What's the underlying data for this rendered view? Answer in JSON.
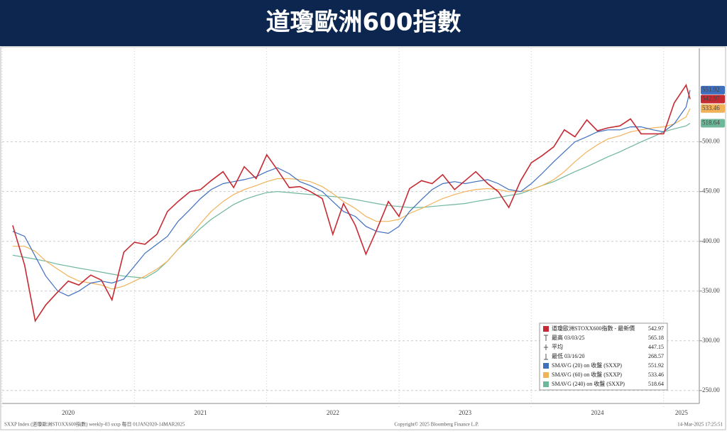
{
  "chart_data": {
    "type": "line",
    "title": "道瓊歐洲600指數",
    "x": [
      2020.08,
      2020.17,
      2020.25,
      2020.33,
      2020.42,
      2020.5,
      2020.58,
      2020.67,
      2020.75,
      2020.83,
      2020.92,
      2021.0,
      2021.08,
      2021.17,
      2021.25,
      2021.33,
      2021.42,
      2021.5,
      2021.58,
      2021.67,
      2021.75,
      2021.83,
      2021.92,
      2022.0,
      2022.08,
      2022.17,
      2022.25,
      2022.33,
      2022.42,
      2022.5,
      2022.58,
      2022.67,
      2022.75,
      2022.83,
      2022.92,
      2023.0,
      2023.08,
      2023.17,
      2023.25,
      2023.33,
      2023.42,
      2023.5,
      2023.58,
      2023.67,
      2023.75,
      2023.83,
      2023.92,
      2024.0,
      2024.08,
      2024.17,
      2024.25,
      2024.33,
      2024.42,
      2024.5,
      2024.58,
      2024.67,
      2024.75,
      2024.83,
      2024.92,
      2025.0,
      2025.08,
      2025.17,
      2025.2
    ],
    "xlim": [
      2020,
      2025.27
    ],
    "xticks": [
      {
        "value": 2020,
        "label": "2020"
      },
      {
        "value": 2021,
        "label": "2021"
      },
      {
        "value": 2022,
        "label": "2022"
      },
      {
        "value": 2023,
        "label": "2023"
      },
      {
        "value": 2024,
        "label": "2024"
      },
      {
        "value": 2025,
        "label": "2025"
      }
    ],
    "ylim": [
      237,
      594
    ],
    "yticks": [
      {
        "value": 250,
        "label": "250.00"
      },
      {
        "value": 300,
        "label": "300.00"
      },
      {
        "value": 350,
        "label": "350.00"
      },
      {
        "value": 400,
        "label": "400.00"
      },
      {
        "value": 450,
        "label": "450.00"
      },
      {
        "value": 500,
        "label": "500.00"
      }
    ],
    "grid": true,
    "series": [
      {
        "name": "道瓊歐洲STOXX600指數 - 最新價",
        "color": "#c62a32",
        "values": [
          416,
          376,
          320,
          336,
          349,
          360,
          356,
          366,
          361,
          341,
          389,
          399,
          397,
          407,
          430,
          440,
          450,
          452,
          461,
          470,
          454,
          475,
          463,
          487,
          472,
          454,
          455,
          450,
          443,
          407,
          438,
          416,
          387,
          411,
          440,
          425,
          453,
          461,
          458,
          467,
          452,
          461,
          470,
          458,
          450,
          434,
          461,
          479,
          486,
          495,
          512,
          505,
          522,
          511,
          514,
          516,
          523,
          508,
          508,
          508,
          539,
          557,
          542.97
        ]
      },
      {
        "name": "SMAVG (20)  on 收盤 (SXXP)",
        "color": "#3f6fbf",
        "values": [
          410,
          405,
          385,
          365,
          350,
          345,
          350,
          358,
          360,
          358,
          362,
          375,
          388,
          397,
          405,
          420,
          432,
          443,
          452,
          458,
          460,
          462,
          465,
          470,
          474,
          468,
          460,
          456,
          450,
          440,
          430,
          425,
          415,
          410,
          408,
          415,
          430,
          442,
          452,
          458,
          460,
          458,
          460,
          462,
          458,
          452,
          450,
          458,
          468,
          480,
          490,
          500,
          505,
          510,
          512,
          512,
          515,
          515,
          512,
          510,
          518,
          535,
          551.92
        ]
      },
      {
        "name": "SMAVG (60)  on 收盤 (SXXP)",
        "color": "#f2b25a",
        "values": [
          395,
          395,
          390,
          380,
          372,
          365,
          360,
          358,
          356,
          352,
          355,
          360,
          365,
          372,
          380,
          392,
          405,
          418,
          430,
          440,
          447,
          452,
          456,
          460,
          463,
          463,
          462,
          460,
          455,
          448,
          440,
          433,
          425,
          420,
          420,
          422,
          428,
          433,
          438,
          443,
          447,
          450,
          452,
          453,
          452,
          450,
          450,
          452,
          456,
          462,
          470,
          480,
          490,
          497,
          503,
          506,
          510,
          512,
          514,
          515,
          518,
          525,
          533.46
        ]
      },
      {
        "name": "SMAVG (240)  on 收盤 (SXXP)",
        "color": "#6fb79a",
        "values": [
          386,
          384,
          382,
          380,
          377,
          375,
          373,
          371,
          369,
          367,
          365,
          364,
          363,
          370,
          380,
          392,
          403,
          413,
          422,
          430,
          437,
          442,
          446,
          449,
          450,
          449,
          448,
          447,
          446,
          445,
          444,
          442,
          440,
          438,
          436,
          435,
          434,
          434,
          435,
          436,
          437,
          438,
          440,
          442,
          444,
          446,
          448,
          452,
          456,
          460,
          465,
          470,
          475,
          480,
          485,
          490,
          495,
          500,
          505,
          510,
          513,
          516,
          518.64
        ]
      }
    ],
    "stats": [
      {
        "label": "最高 03/03/25",
        "value": 565.18
      },
      {
        "label": "平均",
        "value": 447.15
      },
      {
        "label": "最低 03/16/20",
        "value": 268.57
      }
    ],
    "footer": {
      "left": "SXXP Index (道瓊歐洲STOXX600指數) weekly-03 sxxp 每日 01JAN2020-14MAR2025",
      "center": "Copyright© 2025 Bloomberg Finance L.P.",
      "right": "14-Mar-2025 17:25:51"
    }
  }
}
